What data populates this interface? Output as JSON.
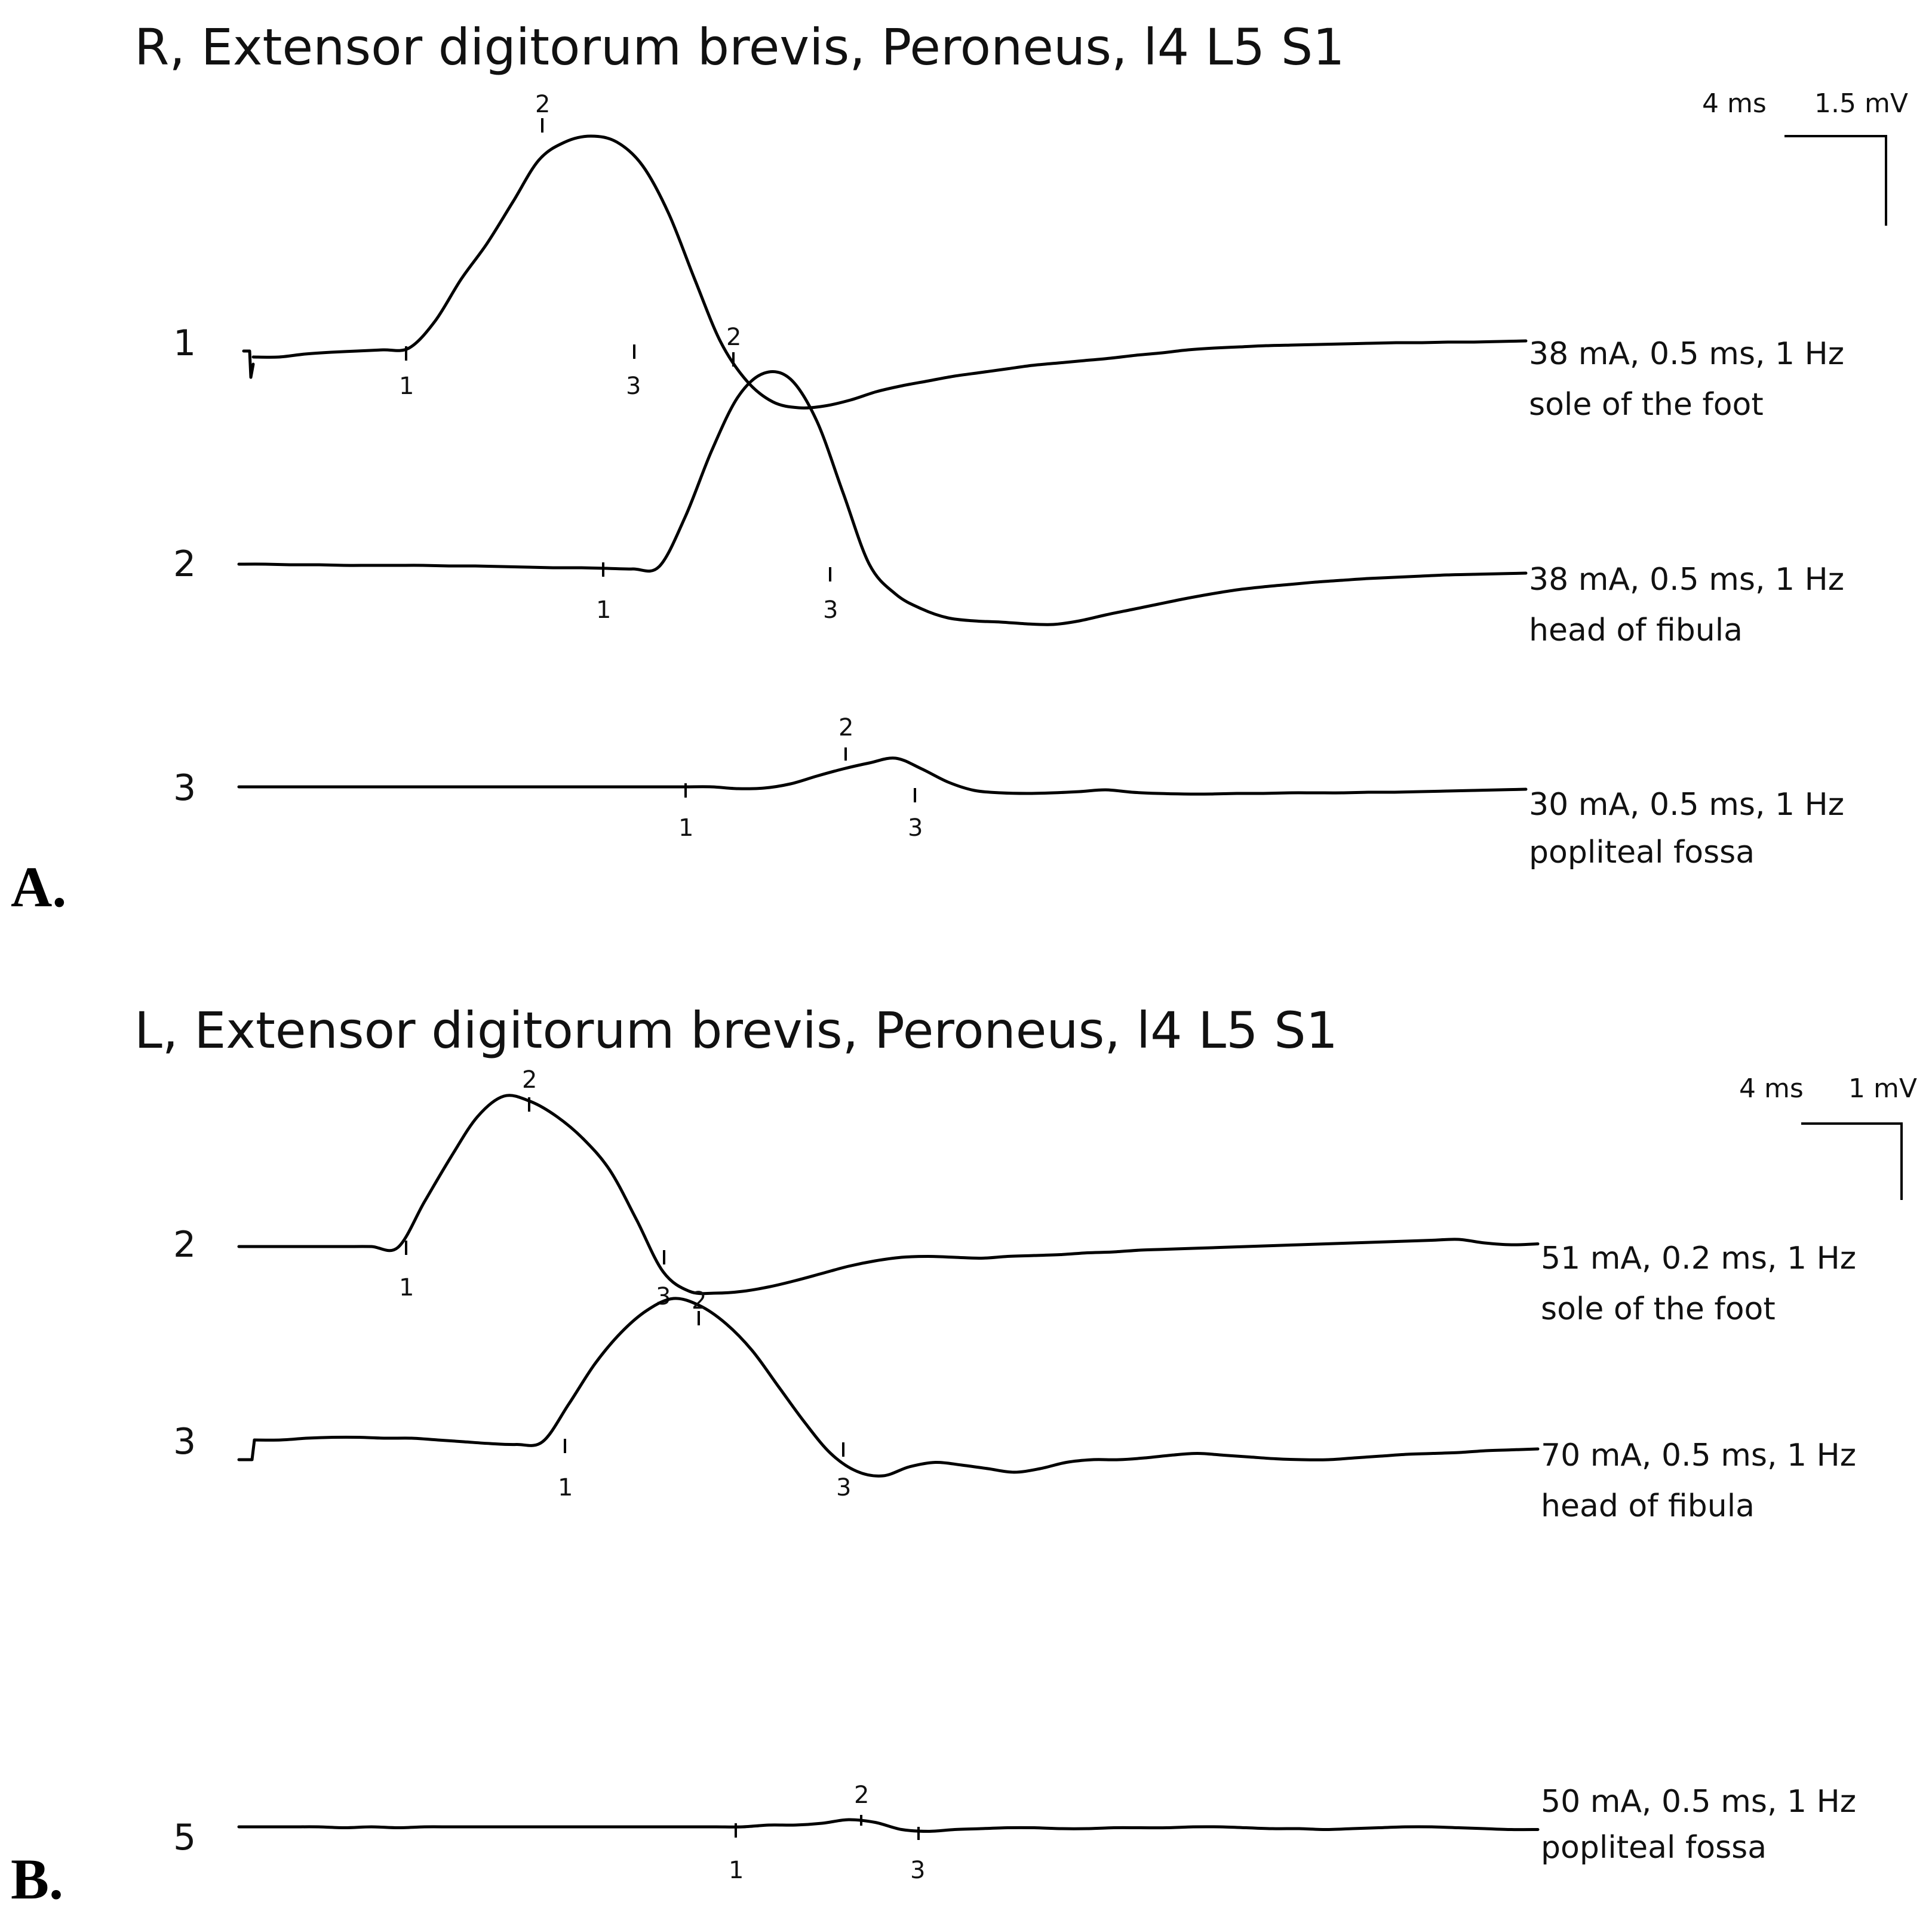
{
  "chart_data": [
    {
      "type": "line",
      "panel": "A.",
      "title": "R, Extensor digitorum brevis, Peroneus, l4 L5 S1",
      "scale": {
        "time": "4 ms",
        "amplitude": "1.5 mV"
      },
      "traces": [
        {
          "row": "1",
          "params": "38 mA, 0.5 ms, 1 Hz",
          "site": "sole of the foot",
          "markers": [
            {
              "label": "1"
            },
            {
              "label": "2"
            },
            {
              "label": "3"
            }
          ],
          "waveform_mv": [
            0.0,
            0.0,
            0.05,
            0.08,
            0.1,
            0.12,
            0.15,
            0.6,
            1.3,
            1.9,
            2.6,
            3.3,
            3.6,
            3.7,
            3.6,
            3.2,
            2.4,
            1.3,
            0.25,
            -0.4,
            -0.75,
            -0.85,
            -0.82,
            -0.72,
            -0.58,
            -0.48,
            -0.4,
            -0.32,
            -0.26,
            -0.2,
            -0.14,
            -0.1,
            -0.06,
            -0.02,
            0.03,
            0.07,
            0.12,
            0.15,
            0.17,
            0.19,
            0.2,
            0.21,
            0.22,
            0.23,
            0.24,
            0.24,
            0.25,
            0.25,
            0.26,
            0.27
          ]
        },
        {
          "row": "2",
          "params": "38 mA, 0.5 ms, 1 Hz",
          "site": "head of fibula",
          "markers": [
            {
              "label": "1"
            },
            {
              "label": "2"
            },
            {
              "label": "3"
            }
          ],
          "waveform_mv": [
            0.0,
            0.0,
            -0.01,
            -0.01,
            -0.02,
            -0.02,
            -0.02,
            -0.02,
            -0.03,
            -0.03,
            -0.04,
            -0.05,
            -0.06,
            -0.06,
            -0.07,
            -0.08,
            -0.04,
            0.8,
            1.9,
            2.8,
            3.2,
            3.1,
            2.4,
            1.2,
            0.0,
            -0.5,
            -0.75,
            -0.9,
            -0.95,
            -0.97,
            -1.0,
            -1.01,
            -0.95,
            -0.85,
            -0.76,
            -0.67,
            -0.58,
            -0.5,
            -0.43,
            -0.38,
            -0.34,
            -0.3,
            -0.27,
            -0.24,
            -0.22,
            -0.2,
            -0.18,
            -0.17,
            -0.16,
            -0.15
          ]
        },
        {
          "row": "3",
          "params": "30 mA, 0.5 ms, 1 Hz",
          "site": "popliteal fossa",
          "markers": [
            {
              "label": "1"
            },
            {
              "label": "2"
            },
            {
              "label": "3"
            }
          ],
          "waveform_mv": [
            0.0,
            0.0,
            0.0,
            0.0,
            0.0,
            0.0,
            0.0,
            0.0,
            0.0,
            0.0,
            0.0,
            0.0,
            0.0,
            0.0,
            0.0,
            0.0,
            0.0,
            0.0,
            0.0,
            -0.03,
            -0.02,
            0.05,
            0.18,
            0.3,
            0.4,
            0.48,
            0.3,
            0.08,
            -0.06,
            -0.1,
            -0.11,
            -0.1,
            -0.08,
            -0.05,
            -0.09,
            -0.11,
            -0.12,
            -0.12,
            -0.11,
            -0.11,
            -0.1,
            -0.1,
            -0.1,
            -0.09,
            -0.09,
            -0.08,
            -0.07,
            -0.06,
            -0.05,
            -0.04
          ]
        }
      ]
    },
    {
      "type": "line",
      "panel": "B.",
      "title": "L, Extensor digitorum brevis, Peroneus, l4 L5 S1",
      "scale": {
        "time": "4 ms",
        "amplitude": "1 mV"
      },
      "traces": [
        {
          "row": "2",
          "params": "51 mA, 0.2 ms, 1 Hz",
          "site": "sole of the foot",
          "markers": [
            {
              "label": "1"
            },
            {
              "label": "2"
            },
            {
              "label": "3"
            }
          ],
          "waveform_mv": [
            0.0,
            0.0,
            0.0,
            0.0,
            0.0,
            0.0,
            -0.01,
            0.5,
            1.0,
            1.45,
            1.68,
            1.62,
            1.45,
            1.2,
            0.85,
            0.3,
            -0.28,
            -0.5,
            -0.52,
            -0.5,
            -0.45,
            -0.38,
            -0.3,
            -0.22,
            -0.16,
            -0.12,
            -0.11,
            -0.12,
            -0.13,
            -0.11,
            -0.1,
            -0.09,
            -0.07,
            -0.06,
            -0.04,
            -0.03,
            -0.02,
            -0.01,
            0.0,
            0.01,
            0.02,
            0.03,
            0.04,
            0.05,
            0.06,
            0.07,
            0.08,
            0.04,
            0.02,
            0.03
          ]
        },
        {
          "row": "3",
          "params": "70 mA, 0.5 ms, 1 Hz",
          "site": "head of fibula",
          "markers": [
            {
              "label": "1"
            },
            {
              "label": "2"
            },
            {
              "label": "3"
            }
          ],
          "waveform_mv": [
            0.0,
            0.0,
            0.02,
            0.03,
            0.03,
            0.02,
            0.02,
            0.0,
            -0.02,
            -0.04,
            -0.05,
            -0.02,
            0.4,
            0.85,
            1.2,
            1.45,
            1.58,
            1.5,
            1.3,
            1.0,
            0.6,
            0.2,
            -0.15,
            -0.35,
            -0.4,
            -0.3,
            -0.25,
            -0.28,
            -0.32,
            -0.36,
            -0.32,
            -0.25,
            -0.22,
            -0.22,
            -0.2,
            -0.17,
            -0.15,
            -0.17,
            -0.19,
            -0.21,
            -0.22,
            -0.22,
            -0.2,
            -0.18,
            -0.16,
            -0.15,
            -0.14,
            -0.12,
            -0.11,
            -0.1
          ]
        },
        {
          "row": "5",
          "params": "50 mA, 0.5 ms, 1 Hz",
          "site": "popliteal fossa",
          "markers": [
            {
              "label": "1"
            },
            {
              "label": "2"
            },
            {
              "label": "3"
            }
          ],
          "waveform_mv": [
            0.0,
            0.0,
            0.0,
            0.0,
            -0.01,
            0.0,
            -0.01,
            0.0,
            0.0,
            0.0,
            0.0,
            0.0,
            0.0,
            0.0,
            0.0,
            0.0,
            0.0,
            0.0,
            0.0,
            0.0,
            0.02,
            0.02,
            0.04,
            0.08,
            0.05,
            -0.03,
            -0.05,
            -0.03,
            -0.02,
            -0.01,
            -0.01,
            -0.02,
            -0.02,
            -0.01,
            -0.01,
            -0.01,
            0.0,
            0.0,
            -0.01,
            -0.02,
            -0.02,
            -0.03,
            -0.02,
            -0.01,
            0.0,
            0.0,
            -0.01,
            -0.02,
            -0.03,
            -0.03
          ]
        }
      ]
    }
  ]
}
